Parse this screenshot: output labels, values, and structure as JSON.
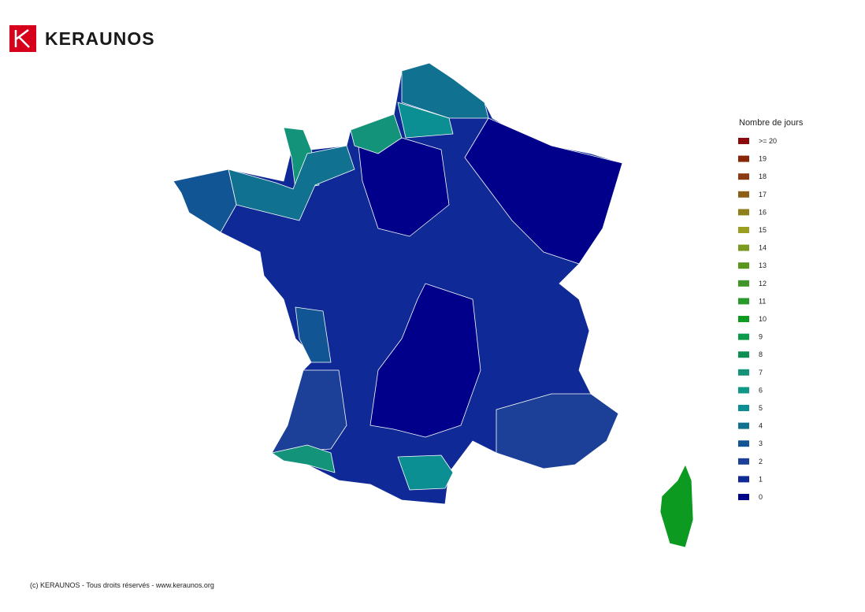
{
  "header": {
    "brand": "KERAUNOS"
  },
  "legend": {
    "title": "Nombre de jours",
    "items": [
      {
        "label": ">= 20",
        "color": "#8b0a0a"
      },
      {
        "label": "19",
        "color": "#8b2508"
      },
      {
        "label": "18",
        "color": "#8b3c10"
      },
      {
        "label": "17",
        "color": "#8c5e16"
      },
      {
        "label": "16",
        "color": "#8f7e1c"
      },
      {
        "label": "15",
        "color": "#9a9e22"
      },
      {
        "label": "14",
        "color": "#7a9a20"
      },
      {
        "label": "13",
        "color": "#5a951f"
      },
      {
        "label": "12",
        "color": "#3f9526"
      },
      {
        "label": "11",
        "color": "#2a9b2a"
      },
      {
        "label": "10",
        "color": "#0d9a20"
      },
      {
        "label": "9",
        "color": "#0c9a48"
      },
      {
        "label": "8",
        "color": "#108f55"
      },
      {
        "label": "7",
        "color": "#13937a"
      },
      {
        "label": "6",
        "color": "#0f9888"
      },
      {
        "label": "5",
        "color": "#0c8f92"
      },
      {
        "label": "4",
        "color": "#107290"
      },
      {
        "label": "3",
        "color": "#125595"
      },
      {
        "label": "2",
        "color": "#1c3f97"
      },
      {
        "label": "1",
        "color": "#0f2a96"
      },
      {
        "label": "0",
        "color": "#00008b"
      }
    ]
  },
  "map": {
    "areas": [
      1,
      0,
      0,
      0,
      4,
      5,
      7,
      7,
      4,
      3,
      2,
      7,
      5,
      2,
      3,
      10
    ]
  },
  "footer": "(c) KERAUNOS - Tous droits réservés - www.keraunos.org"
}
